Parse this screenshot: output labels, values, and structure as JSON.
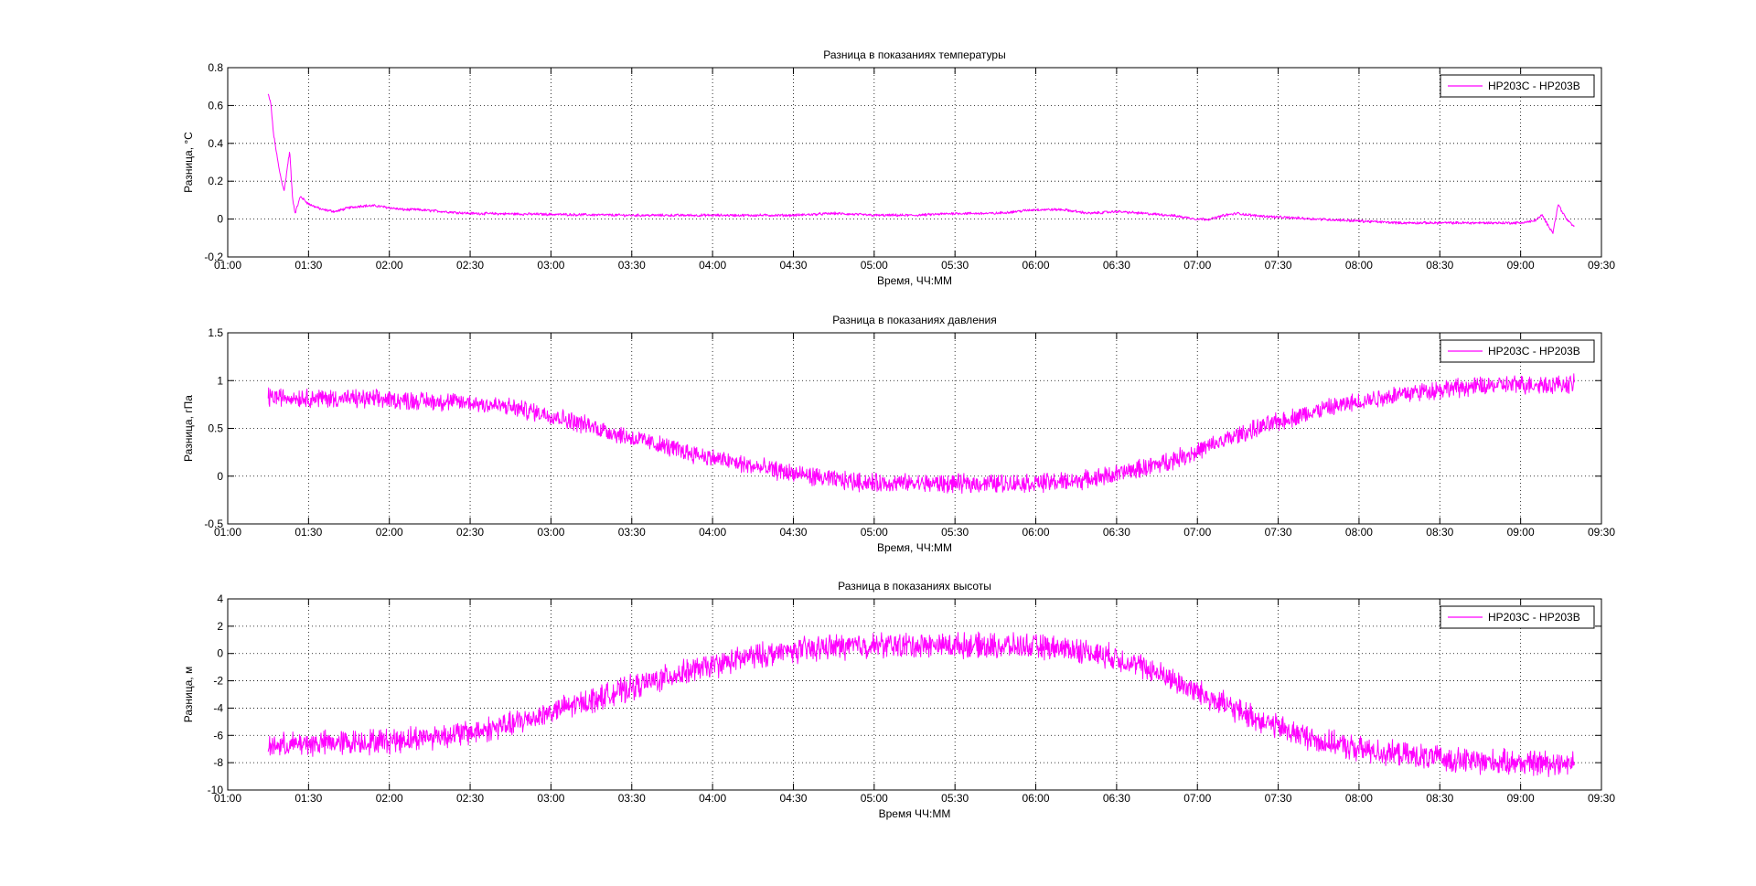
{
  "window": {
    "background": "#ffffff"
  },
  "colors": {
    "series": "#ff00ff",
    "axes": "#000000",
    "grid": "#000000",
    "background": "#ffffff"
  },
  "chart_data": [
    {
      "type": "line",
      "title": "Разница в показаниях температуры",
      "xlabel": "Время, ЧЧ:ММ",
      "ylabel": "Разница, °С",
      "xlim": [
        "01:00",
        "09:30"
      ],
      "ylim": [
        -0.2,
        0.8
      ],
      "x_ticks": [
        "01:00",
        "01:30",
        "02:00",
        "02:30",
        "03:00",
        "03:30",
        "04:00",
        "04:30",
        "05:00",
        "05:30",
        "06:00",
        "06:30",
        "07:00",
        "07:30",
        "08:00",
        "08:30",
        "09:00",
        "09:30"
      ],
      "y_ticks": [
        "-0.2",
        "0",
        "0.2",
        "0.4",
        "0.6",
        "0.8"
      ],
      "grid": true,
      "grid_style": "dotted",
      "legend_position": "top-right",
      "noise_amplitude": 0.006,
      "series": [
        {
          "name": "HP203C - HP203B",
          "color": "#ff00ff",
          "x": [
            "01:15",
            "01:16",
            "01:17",
            "01:18",
            "01:19",
            "01:20",
            "01:21",
            "01:22",
            "01:23",
            "01:24",
            "01:25",
            "01:27",
            "01:30",
            "01:35",
            "01:40",
            "01:45",
            "01:50",
            "01:55",
            "02:00",
            "02:05",
            "02:10",
            "02:20",
            "02:30",
            "03:00",
            "03:30",
            "04:00",
            "04:30",
            "04:45",
            "05:00",
            "05:15",
            "05:30",
            "05:45",
            "06:00",
            "06:10",
            "06:20",
            "06:30",
            "06:40",
            "06:50",
            "07:00",
            "07:05",
            "07:10",
            "07:15",
            "07:20",
            "07:30",
            "08:00",
            "08:15",
            "08:30",
            "08:45",
            "09:00",
            "09:05",
            "09:08",
            "09:10",
            "09:12",
            "09:14",
            "09:15",
            "09:17",
            "09:19",
            "09:20"
          ],
          "y": [
            0.66,
            0.61,
            0.45,
            0.36,
            0.27,
            0.2,
            0.15,
            0.26,
            0.36,
            0.12,
            0.03,
            0.12,
            0.08,
            0.05,
            0.04,
            0.06,
            0.07,
            0.07,
            0.06,
            0.05,
            0.05,
            0.04,
            0.03,
            0.025,
            0.02,
            0.02,
            0.02,
            0.03,
            0.02,
            0.02,
            0.03,
            0.03,
            0.05,
            0.05,
            0.03,
            0.04,
            0.03,
            0.02,
            0.0,
            0.0,
            0.02,
            0.03,
            0.02,
            0.01,
            -0.01,
            -0.02,
            -0.02,
            -0.02,
            -0.02,
            -0.01,
            0.02,
            -0.03,
            -0.07,
            0.08,
            0.05,
            0.0,
            -0.03,
            -0.04
          ]
        }
      ]
    },
    {
      "type": "line",
      "title": "Разница в показаниях давления",
      "xlabel": "Время, ЧЧ:ММ",
      "ylabel": "Разница, гПа",
      "xlim": [
        "01:00",
        "09:30"
      ],
      "ylim": [
        -0.5,
        1.5
      ],
      "x_ticks": [
        "01:00",
        "01:30",
        "02:00",
        "02:30",
        "03:00",
        "03:30",
        "04:00",
        "04:30",
        "05:00",
        "05:30",
        "06:00",
        "06:30",
        "07:00",
        "07:30",
        "08:00",
        "08:30",
        "09:00",
        "09:30"
      ],
      "y_ticks": [
        "-0.5",
        "0",
        "0.5",
        "1",
        "1.5"
      ],
      "grid": true,
      "grid_style": "dotted",
      "legend_position": "top-right",
      "noise_amplitude": 0.08,
      "series": [
        {
          "name": "HP203C - HP203B",
          "color": "#ff00ff",
          "x": [
            "01:15",
            "01:30",
            "02:00",
            "02:30",
            "02:45",
            "03:00",
            "03:15",
            "03:30",
            "03:45",
            "04:00",
            "04:15",
            "04:30",
            "04:45",
            "05:00",
            "05:30",
            "06:00",
            "06:15",
            "06:30",
            "06:45",
            "07:00",
            "07:15",
            "07:30",
            "07:45",
            "08:00",
            "08:15",
            "08:30",
            "08:45",
            "09:00",
            "09:20"
          ],
          "y": [
            0.83,
            0.82,
            0.8,
            0.77,
            0.72,
            0.64,
            0.52,
            0.4,
            0.29,
            0.19,
            0.1,
            0.03,
            -0.04,
            -0.07,
            -0.08,
            -0.07,
            -0.05,
            0.02,
            0.12,
            0.26,
            0.43,
            0.57,
            0.69,
            0.78,
            0.86,
            0.91,
            0.94,
            0.96,
            0.96
          ]
        }
      ]
    },
    {
      "type": "line",
      "title": "Разница в показаниях высоты",
      "xlabel": "Время ЧЧ:ММ",
      "ylabel": "Разница, м",
      "xlim": [
        "01:00",
        "09:30"
      ],
      "ylim": [
        -10,
        4
      ],
      "x_ticks": [
        "01:00",
        "01:30",
        "02:00",
        "02:30",
        "03:00",
        "03:30",
        "04:00",
        "04:30",
        "05:00",
        "05:30",
        "06:00",
        "06:30",
        "07:00",
        "07:30",
        "08:00",
        "08:30",
        "09:00",
        "09:30"
      ],
      "y_ticks": [
        "-10",
        "-8",
        "-6",
        "-4",
        "-2",
        "0",
        "2",
        "4"
      ],
      "grid": true,
      "grid_style": "dotted",
      "legend_position": "top-right",
      "noise_amplitude": 0.75,
      "series": [
        {
          "name": "HP203C - HP203B",
          "color": "#ff00ff",
          "x": [
            "01:15",
            "01:30",
            "02:00",
            "02:30",
            "02:45",
            "03:00",
            "03:15",
            "03:30",
            "03:45",
            "04:00",
            "04:15",
            "04:30",
            "04:45",
            "05:00",
            "05:30",
            "06:00",
            "06:15",
            "06:30",
            "06:45",
            "07:00",
            "07:15",
            "07:30",
            "07:45",
            "08:00",
            "08:15",
            "08:30",
            "08:45",
            "09:00",
            "09:20"
          ],
          "y": [
            -6.8,
            -6.6,
            -6.4,
            -5.8,
            -5.2,
            -4.3,
            -3.4,
            -2.5,
            -1.6,
            -0.9,
            -0.2,
            0.2,
            0.5,
            0.6,
            0.6,
            0.5,
            0.3,
            -0.3,
            -1.4,
            -2.8,
            -4.2,
            -5.4,
            -6.4,
            -7.0,
            -7.4,
            -7.7,
            -7.9,
            -8.0,
            -8.0
          ]
        }
      ]
    }
  ]
}
